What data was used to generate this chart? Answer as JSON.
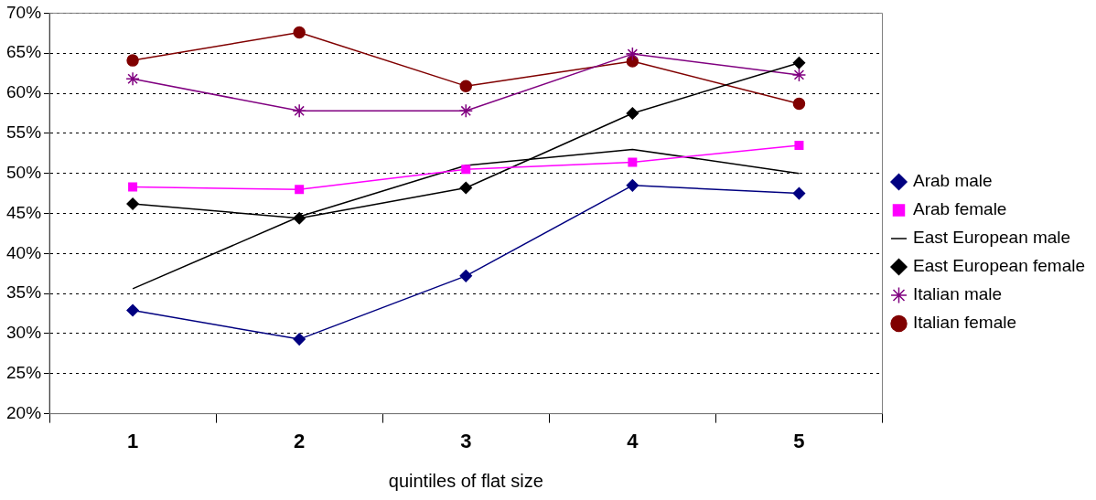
{
  "chart_data": {
    "type": "line",
    "xlabel": "quintiles of flat size",
    "categories": [
      "1",
      "2",
      "3",
      "4",
      "5"
    ],
    "ylim": [
      20,
      70
    ],
    "yticks": [
      {
        "value": 20,
        "label": "20%"
      },
      {
        "value": 25,
        "label": "25%"
      },
      {
        "value": 30,
        "label": "30%"
      },
      {
        "value": 35,
        "label": "35%"
      },
      {
        "value": 40,
        "label": "40%"
      },
      {
        "value": 45,
        "label": "45%"
      },
      {
        "value": 50,
        "label": "50%"
      },
      {
        "value": 55,
        "label": "55%"
      },
      {
        "value": 60,
        "label": "60%"
      },
      {
        "value": 65,
        "label": "65%"
      },
      {
        "value": 70,
        "label": "70%"
      }
    ],
    "grid": "y",
    "legend": "right",
    "line_style": "solid",
    "series": [
      {
        "name": "Arab male",
        "color": "#000080",
        "marker": "diamond",
        "values": [
          32.9,
          29.3,
          37.2,
          48.5,
          47.5
        ]
      },
      {
        "name": "Arab female",
        "color": "#ff00ff",
        "marker": "square",
        "values": [
          48.3,
          48.0,
          50.5,
          51.4,
          53.5
        ]
      },
      {
        "name": "East European male",
        "color": "#000000",
        "marker": "none",
        "values": [
          35.6,
          44.6,
          51.0,
          53.0,
          50.0
        ]
      },
      {
        "name": "East European female",
        "color": "#000000",
        "marker": "diamond",
        "values": [
          46.2,
          44.4,
          48.2,
          57.5,
          63.8
        ]
      },
      {
        "name": "Italian male",
        "color": "#800080",
        "marker": "cross",
        "values": [
          61.8,
          57.8,
          57.8,
          64.9,
          62.3
        ]
      },
      {
        "name": "Italian female",
        "color": "#800000",
        "marker": "circle",
        "values": [
          64.1,
          67.6,
          60.9,
          64.0,
          58.7
        ]
      }
    ]
  }
}
